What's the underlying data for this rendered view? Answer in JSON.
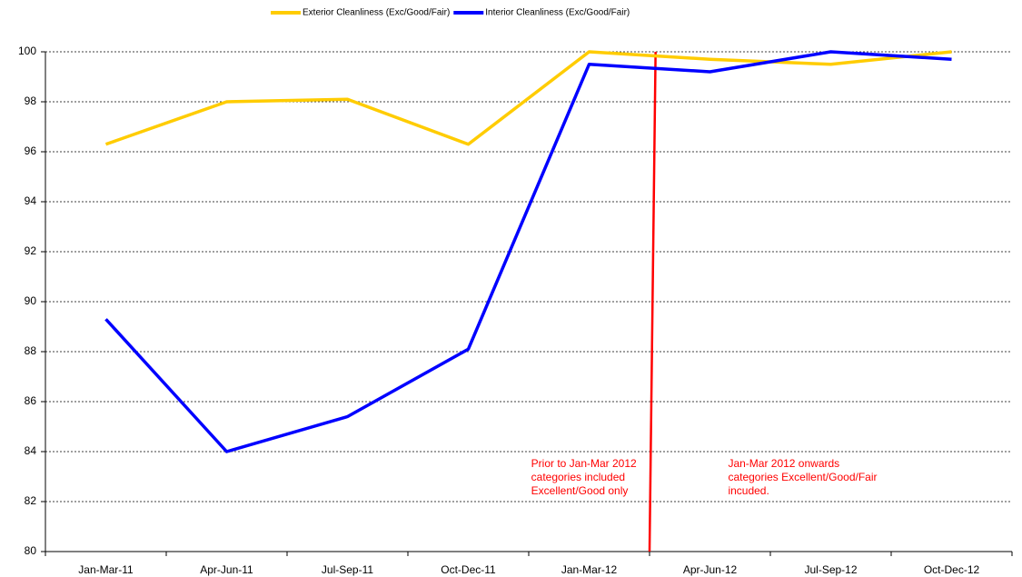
{
  "chart_data": {
    "type": "line",
    "categories": [
      "Jan-Mar-11",
      "Apr-Jun-11",
      "Jul-Sep-11",
      "Oct-Dec-11",
      "Jan-Mar-12",
      "Apr-Jun-12",
      "Jul-Sep-12",
      "Oct-Dec-12"
    ],
    "series": [
      {
        "name": "Exterior Cleanliness (Exc/Good/Fair)",
        "color": "#ffcc00",
        "values": [
          96.3,
          98.0,
          98.1,
          96.3,
          100.0,
          99.7,
          99.5,
          100.0
        ]
      },
      {
        "name": "Interior Cleanliness (Exc/Good/Fair)",
        "color": "#0000ff",
        "values": [
          89.3,
          84.0,
          85.4,
          88.1,
          99.5,
          99.2,
          100.0,
          99.7
        ]
      }
    ],
    "ylim": [
      80,
      100
    ],
    "yticks": [
      80,
      82,
      84,
      86,
      88,
      90,
      92,
      94,
      96,
      98,
      100
    ],
    "grid": true,
    "legend": "top",
    "annotations": [
      {
        "lines": [
          "Prior to Jan-Mar 2012",
          "categories included",
          "Excellent/Good only"
        ]
      },
      {
        "lines": [
          "Jan-Mar 2012 onwards",
          "categories Excellent/Good/Fair",
          "incuded."
        ]
      }
    ]
  }
}
